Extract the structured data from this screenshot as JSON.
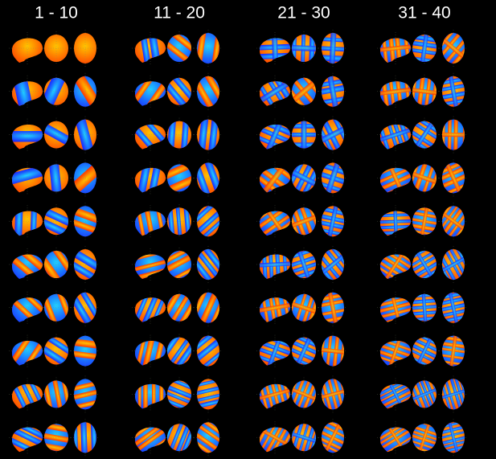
{
  "column_titles": [
    "1 - 10",
    "11 - 20",
    "21 - 30",
    "31 - 40"
  ]
}
